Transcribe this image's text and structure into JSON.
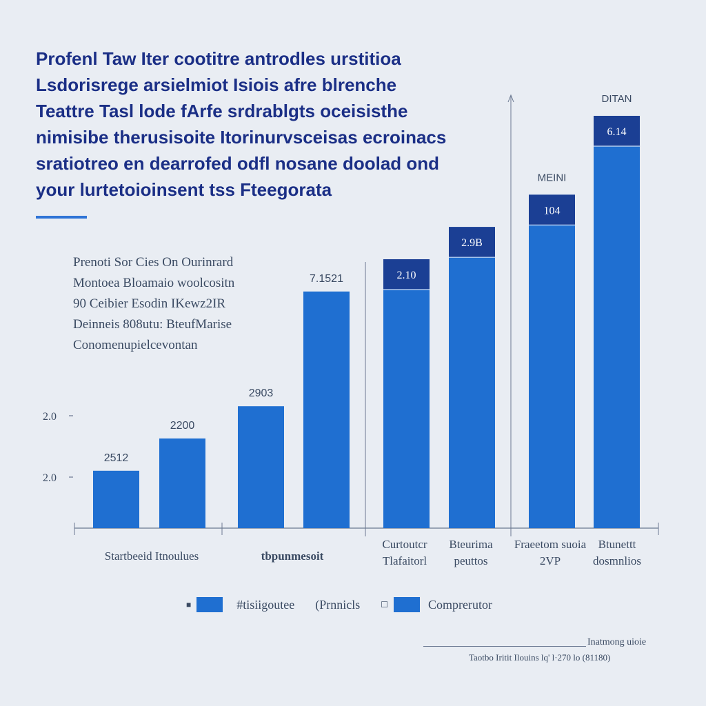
{
  "header": {
    "title_lines": [
      "Profenl Taw Iter cootitre antrodles urstitioa",
      "Lsdorisrege arsielmiot Isiois afre blrenche",
      "Teattre Tasl lode fArfe srdrablgts oceisisthe",
      "nimisibe therusisoite Itorinurvsceisas ecroinacs",
      "sratiotreo en dearrofed odfl nosane doolad ond",
      "your lurtetoioinsent tss Fteegorata"
    ]
  },
  "description": {
    "lines": [
      "Prenoti Sor Cies On Ourinrard",
      "Montoea Bloamaio woolcositn",
      "90 Ceibier Esodin IKewz2IR",
      "Deinneis 808utu: BteufMarise",
      "Conomenupielcevontan"
    ]
  },
  "chart_data": {
    "type": "bar",
    "y_ticks": [
      "2.0",
      "2.0"
    ],
    "bars": [
      {
        "value": 1.6,
        "label": "2512"
      },
      {
        "value": 2.5,
        "label": "2200"
      },
      {
        "value": 3.4,
        "label": "2903"
      },
      {
        "value": 6.6,
        "label": "7.1521"
      },
      {
        "value": 7.5,
        "label": "2.10",
        "header": ""
      },
      {
        "value": 8.4,
        "label": "2.9B",
        "header": ""
      },
      {
        "value": 9.3,
        "label": "104",
        "header": "MEINI"
      },
      {
        "value": 11.5,
        "label": "6.14",
        "header": "DITAN"
      }
    ],
    "category_groups": [
      {
        "label": "Startbeeid Itnoulues",
        "bold": false
      },
      {
        "label": "tbpunmesoit",
        "bold": true
      },
      {
        "label": "Curtoutcr Tlafaitorl",
        "bold": false
      },
      {
        "label": "Bteurima peuttos",
        "bold": false
      },
      {
        "label": "Fraeetom suoia 2VP",
        "bold": false
      },
      {
        "label": "Btunettt dosmnlios",
        "bold": false
      }
    ],
    "legend": [
      {
        "marker": "■",
        "name": "#tisiigoutee",
        "color": "#1f6fd1"
      },
      {
        "marker": "(Prnnicls",
        "name": "",
        "color": ""
      },
      {
        "marker": "☐",
        "name": "Comprerutor",
        "color": "#1f6fd1"
      }
    ],
    "colors": {
      "bar": "#1f6fd1",
      "bar_cap": "#1b3f94",
      "axis": "#6a7890",
      "text": "#3a4a62",
      "title": "#1b2f86",
      "accent": "#2f74d6"
    }
  },
  "footer": {
    "source_label": "Inatmong uioie",
    "source_note": "Taotbo Iritit Ilouins lq' l·270 lo (81180)"
  }
}
